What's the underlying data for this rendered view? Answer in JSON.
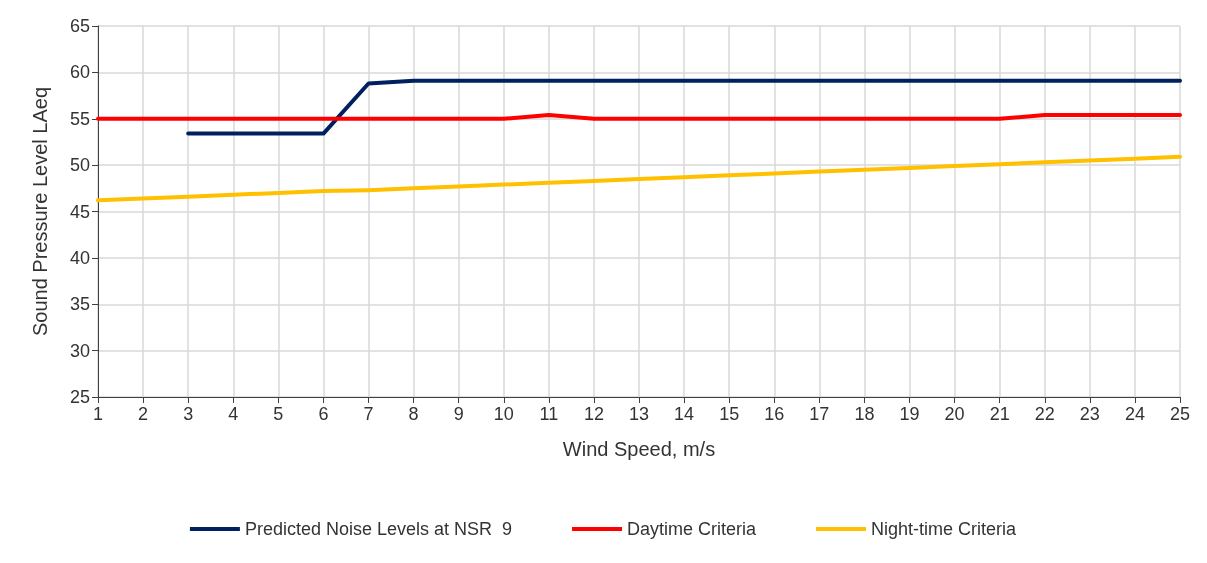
{
  "chart_data": {
    "type": "line",
    "xlabel": "Wind Speed, m/s",
    "ylabel": "Sound Pressure Level LAeq",
    "x": [
      1,
      2,
      3,
      4,
      5,
      6,
      7,
      8,
      9,
      10,
      11,
      12,
      13,
      14,
      15,
      16,
      17,
      18,
      19,
      20,
      21,
      22,
      23,
      24,
      25
    ],
    "series": [
      {
        "name": "Predicted Noise Levels at NSR  9",
        "color": "#002060",
        "values": [
          null,
          null,
          53.4,
          53.4,
          53.4,
          53.4,
          58.8,
          59.1,
          59.1,
          59.1,
          59.1,
          59.1,
          59.1,
          59.1,
          59.1,
          59.1,
          59.1,
          59.1,
          59.1,
          59.1,
          59.1,
          59.1,
          59.1,
          59.1,
          59.1
        ]
      },
      {
        "name": "Daytime Criteria",
        "color": "#ff0000",
        "values": [
          55,
          55,
          55,
          55,
          55,
          55,
          55,
          55,
          55,
          55,
          55.4,
          55,
          55,
          55,
          55,
          55,
          55,
          55,
          55,
          55,
          55,
          55.4,
          55.4,
          55.4,
          55.4
        ]
      },
      {
        "name": "Night-time Criteria",
        "color": "#ffc000",
        "values": [
          46.2,
          46.4,
          46.6,
          46.8,
          47.0,
          47.2,
          47.3,
          47.5,
          47.7,
          47.9,
          48.1,
          48.3,
          48.5,
          48.7,
          48.9,
          49.1,
          49.3,
          49.5,
          49.7,
          49.9,
          50.1,
          50.3,
          50.5,
          50.7,
          50.9
        ]
      }
    ],
    "xlim": [
      1,
      25
    ],
    "xticks": [
      1,
      2,
      3,
      4,
      5,
      6,
      7,
      8,
      9,
      10,
      11,
      12,
      13,
      14,
      15,
      16,
      17,
      18,
      19,
      20,
      21,
      22,
      23,
      24,
      25
    ],
    "ylim": [
      25,
      65
    ],
    "yticks": [
      25,
      30,
      35,
      40,
      45,
      50,
      55,
      60,
      65
    ],
    "grid": true,
    "legend": "bottom",
    "marker": "none",
    "line_style": "solid"
  }
}
